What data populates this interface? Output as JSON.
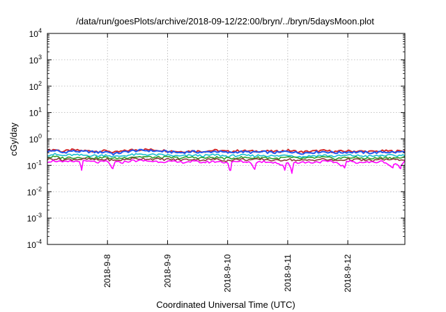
{
  "chart_data": {
    "type": "line",
    "title": "/data/run/goesPlots/archive/2018-09-12/22:00/bryn/../bryn/5daysMoon.plot",
    "xlabel": "Coordinated Universal Time (UTC)",
    "ylabel": "cGy/day",
    "yscale": "log",
    "ylim": [
      0.0001,
      10000
    ],
    "xlim": [
      7.0,
      12.95
    ],
    "x_unit": "day of September 2018 (UTC)",
    "x_ticks": [
      {
        "value": 8,
        "label": "2018-9-8"
      },
      {
        "value": 9,
        "label": "2018-9-9"
      },
      {
        "value": 10,
        "label": "2018-9-10"
      },
      {
        "value": 11,
        "label": "2018-9-11"
      },
      {
        "value": 12,
        "label": "2018-9-12"
      }
    ],
    "y_ticks": [
      {
        "value": 0.0001,
        "base": "10",
        "exp": "-4"
      },
      {
        "value": 0.001,
        "base": "10",
        "exp": "-3"
      },
      {
        "value": 0.01,
        "base": "10",
        "exp": "-2"
      },
      {
        "value": 0.1,
        "base": "10",
        "exp": "-1"
      },
      {
        "value": 1,
        "base": "10",
        "exp": "0"
      },
      {
        "value": 10,
        "base": "10",
        "exp": "1"
      },
      {
        "value": 100,
        "base": "10",
        "exp": "2"
      },
      {
        "value": 1000,
        "base": "10",
        "exp": "3"
      },
      {
        "value": 10000,
        "base": "10",
        "exp": "4"
      }
    ],
    "grid": true,
    "series": [
      {
        "color": "#d62728",
        "base": 0.34,
        "x": [
          7.0,
          7.13,
          7.25,
          7.4,
          7.55,
          7.7,
          7.85,
          8.0,
          8.1,
          8.25,
          8.4,
          8.6,
          8.8,
          9.0,
          9.2,
          9.4,
          9.6,
          9.8,
          10.0,
          10.2,
          10.4,
          10.6,
          10.8,
          11.0,
          11.2,
          11.4,
          11.6,
          11.8,
          12.0,
          12.2,
          12.4,
          12.6,
          12.8,
          12.95
        ],
        "y": [
          0.36,
          0.4,
          0.33,
          0.38,
          0.36,
          0.35,
          0.34,
          0.36,
          0.3,
          0.34,
          0.38,
          0.4,
          0.38,
          0.36,
          0.33,
          0.35,
          0.34,
          0.37,
          0.33,
          0.36,
          0.34,
          0.35,
          0.33,
          0.37,
          0.32,
          0.34,
          0.36,
          0.33,
          0.35,
          0.34,
          0.33,
          0.35,
          0.34,
          0.36
        ]
      },
      {
        "color": "#2255ee",
        "base": 0.32,
        "x": [
          7.0,
          7.13,
          7.25,
          7.4,
          7.55,
          7.7,
          7.85,
          8.0,
          8.1,
          8.25,
          8.4,
          8.6,
          8.8,
          9.0,
          9.2,
          9.4,
          9.6,
          9.8,
          10.0,
          10.2,
          10.4,
          10.6,
          10.8,
          11.0,
          11.2,
          11.4,
          11.6,
          11.8,
          12.0,
          12.2,
          12.4,
          12.6,
          12.8,
          12.95
        ],
        "y": [
          0.33,
          0.37,
          0.3,
          0.35,
          0.33,
          0.33,
          0.31,
          0.33,
          0.27,
          0.31,
          0.35,
          0.37,
          0.35,
          0.33,
          0.3,
          0.33,
          0.31,
          0.34,
          0.3,
          0.33,
          0.31,
          0.32,
          0.3,
          0.34,
          0.29,
          0.31,
          0.33,
          0.3,
          0.32,
          0.31,
          0.3,
          0.32,
          0.31,
          0.33
        ]
      },
      {
        "color": "#17becf",
        "base": 0.24,
        "x": [
          7.0,
          7.13,
          7.25,
          7.4,
          7.55,
          7.7,
          7.85,
          8.0,
          8.1,
          8.25,
          8.4,
          8.6,
          8.8,
          9.0,
          9.2,
          9.4,
          9.6,
          9.8,
          10.0,
          10.2,
          10.4,
          10.6,
          10.8,
          11.0,
          11.2,
          11.4,
          11.6,
          11.8,
          12.0,
          12.2,
          12.4,
          12.6,
          12.8,
          12.95
        ],
        "y": [
          0.25,
          0.26,
          0.23,
          0.25,
          0.24,
          0.24,
          0.23,
          0.25,
          0.21,
          0.23,
          0.25,
          0.26,
          0.25,
          0.24,
          0.22,
          0.24,
          0.23,
          0.25,
          0.22,
          0.24,
          0.23,
          0.24,
          0.22,
          0.25,
          0.21,
          0.23,
          0.24,
          0.22,
          0.24,
          0.23,
          0.22,
          0.24,
          0.23,
          0.25
        ]
      },
      {
        "color": "#2ca02c",
        "base": 0.2,
        "x": [
          7.0,
          7.13,
          7.25,
          7.4,
          7.55,
          7.7,
          7.85,
          8.0,
          8.1,
          8.25,
          8.4,
          8.6,
          8.8,
          9.0,
          9.2,
          9.4,
          9.6,
          9.8,
          10.0,
          10.2,
          10.4,
          10.6,
          10.8,
          11.0,
          11.2,
          11.4,
          11.6,
          11.8,
          12.0,
          12.2,
          12.4,
          12.6,
          12.8,
          12.95
        ],
        "y": [
          0.2,
          0.21,
          0.19,
          0.2,
          0.2,
          0.2,
          0.19,
          0.2,
          0.18,
          0.19,
          0.21,
          0.21,
          0.2,
          0.2,
          0.19,
          0.2,
          0.19,
          0.2,
          0.18,
          0.2,
          0.19,
          0.2,
          0.18,
          0.2,
          0.18,
          0.19,
          0.2,
          0.18,
          0.2,
          0.19,
          0.18,
          0.2,
          0.19,
          0.2
        ]
      },
      {
        "color": "#8b3a3a",
        "base": 0.17,
        "x": [
          7.0,
          7.13,
          7.25,
          7.4,
          7.55,
          7.7,
          7.85,
          8.0,
          8.1,
          8.25,
          8.4,
          8.6,
          8.8,
          9.0,
          9.2,
          9.4,
          9.6,
          9.8,
          10.0,
          10.2,
          10.4,
          10.6,
          10.8,
          11.0,
          11.2,
          11.4,
          11.6,
          11.8,
          12.0,
          12.2,
          12.4,
          12.6,
          12.8,
          12.95
        ],
        "y": [
          0.17,
          0.18,
          0.16,
          0.17,
          0.17,
          0.17,
          0.16,
          0.17,
          0.15,
          0.16,
          0.18,
          0.18,
          0.17,
          0.17,
          0.16,
          0.17,
          0.16,
          0.17,
          0.15,
          0.17,
          0.16,
          0.17,
          0.15,
          0.17,
          0.15,
          0.16,
          0.17,
          0.15,
          0.17,
          0.16,
          0.15,
          0.17,
          0.16,
          0.17
        ]
      },
      {
        "color": "#ff00ff",
        "base": 0.14,
        "x": [
          7.0,
          7.13,
          7.25,
          7.4,
          7.55,
          7.57,
          7.59,
          7.7,
          7.85,
          8.0,
          8.07,
          8.09,
          8.11,
          8.25,
          8.4,
          8.6,
          8.8,
          9.0,
          9.2,
          9.4,
          9.6,
          9.8,
          10.0,
          10.03,
          10.05,
          10.07,
          10.2,
          10.4,
          10.43,
          10.45,
          10.47,
          10.6,
          10.8,
          10.93,
          10.95,
          10.97,
          11.0,
          11.05,
          11.07,
          11.09,
          11.2,
          11.4,
          11.6,
          11.8,
          11.93,
          11.95,
          11.97,
          12.0,
          12.2,
          12.4,
          12.6,
          12.73,
          12.75,
          12.77,
          12.86,
          12.88,
          12.9,
          12.95
        ],
        "y": [
          0.14,
          0.15,
          0.13,
          0.14,
          0.14,
          0.065,
          0.14,
          0.14,
          0.13,
          0.14,
          0.08,
          0.075,
          0.13,
          0.13,
          0.15,
          0.15,
          0.14,
          0.14,
          0.13,
          0.14,
          0.13,
          0.14,
          0.13,
          0.07,
          0.065,
          0.13,
          0.14,
          0.13,
          0.08,
          0.07,
          0.13,
          0.14,
          0.13,
          0.09,
          0.065,
          0.12,
          0.14,
          0.08,
          0.05,
          0.13,
          0.13,
          0.13,
          0.14,
          0.13,
          0.09,
          0.085,
          0.13,
          0.14,
          0.13,
          0.13,
          0.14,
          0.085,
          0.08,
          0.13,
          0.08,
          0.075,
          0.13,
          0.14
        ]
      }
    ]
  }
}
